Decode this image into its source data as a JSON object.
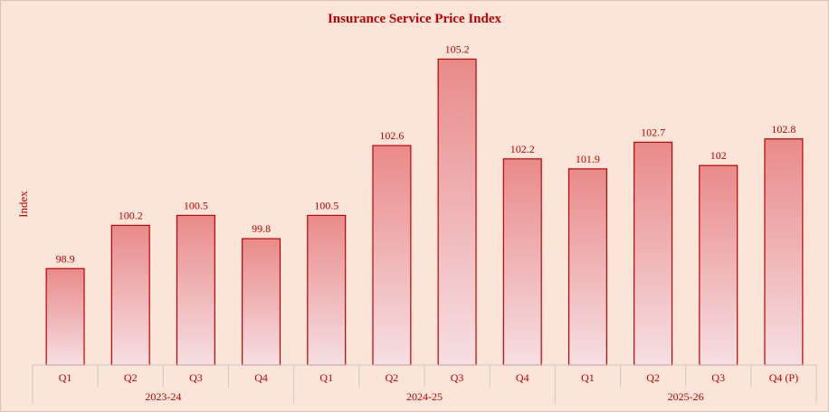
{
  "chart_data": {
    "type": "bar",
    "title": "Insurance Service Price Index",
    "ylabel": "Index",
    "xlabel": "",
    "ylim": [
      96,
      106
    ],
    "grid": false,
    "categories": [
      "Q1",
      "Q2",
      "Q3",
      "Q4",
      "Q1",
      "Q2",
      "Q3",
      "Q4",
      "Q1",
      "Q2",
      "Q3",
      "Q4 (P)"
    ],
    "groups": [
      {
        "label": "2023-24",
        "count": 4
      },
      {
        "label": "2024-25",
        "count": 4
      },
      {
        "label": "2025-26",
        "count": 4
      }
    ],
    "values": [
      98.9,
      100.2,
      100.5,
      99.8,
      100.5,
      102.6,
      105.2,
      102.2,
      101.9,
      102.7,
      102,
      102.8
    ],
    "value_labels": [
      "98.9",
      "100.2",
      "100.5",
      "99.8",
      "100.5",
      "102.6",
      "105.2",
      "102.2",
      "101.9",
      "102.7",
      "102",
      "102.8"
    ]
  },
  "colors": {
    "background": "#fbe5d8",
    "accent": "#c00000",
    "bar_top": "#e98a8a",
    "bar_bottom": "#f6dfe3",
    "bar_border": "#c00000",
    "axis_line": "#c8c8c8"
  }
}
